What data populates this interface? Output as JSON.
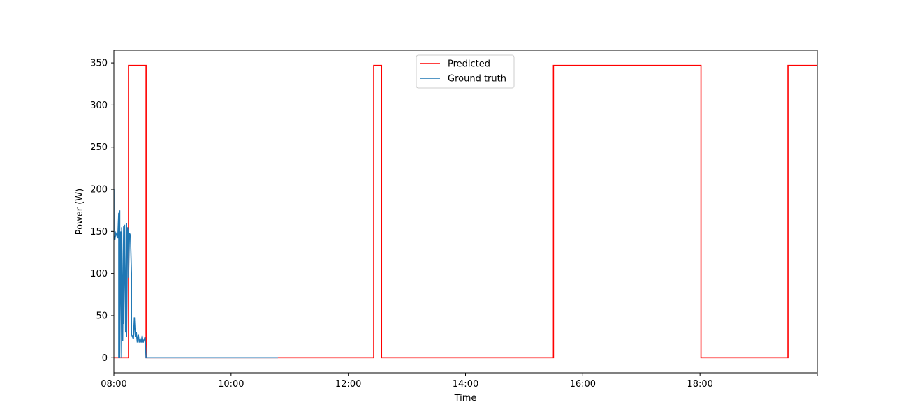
{
  "chart_data": {
    "type": "line",
    "title": "",
    "xlabel": "Time",
    "ylabel": "Power (W)",
    "xlim": [
      "08:00",
      "20:00"
    ],
    "ylim": [
      -18,
      365
    ],
    "x_ticks": [
      "08:00",
      "10:00",
      "12:00",
      "14:00",
      "16:00",
      "18:00"
    ],
    "y_ticks": [
      0,
      50,
      100,
      150,
      200,
      250,
      300,
      350
    ],
    "grid": false,
    "legend_position": "top-center",
    "series": [
      {
        "name": "Predicted",
        "color": "#ff0000",
        "step": true,
        "points": [
          [
            "08:00",
            0
          ],
          [
            "08:15",
            0
          ],
          [
            "08:15",
            347
          ],
          [
            "08:33",
            347
          ],
          [
            "08:33",
            0
          ],
          [
            "12:26",
            0
          ],
          [
            "12:26",
            347
          ],
          [
            "12:34",
            347
          ],
          [
            "12:34",
            0
          ],
          [
            "15:30",
            0
          ],
          [
            "15:30",
            347
          ],
          [
            "18:01",
            347
          ],
          [
            "18:01",
            0
          ],
          [
            "19:30",
            0
          ],
          [
            "19:30",
            347
          ],
          [
            "20:00",
            347
          ],
          [
            "20:00",
            0
          ]
        ]
      },
      {
        "name": "Ground truth",
        "color": "#1f77b4",
        "step": false,
        "points": [
          [
            "08:00",
            200
          ],
          [
            "08:00",
            145
          ],
          [
            "08:01",
            140
          ],
          [
            "08:02",
            148
          ],
          [
            "08:03",
            145
          ],
          [
            "08:04",
            142
          ],
          [
            "08:05",
            172
          ],
          [
            "08:05",
            0
          ],
          [
            "08:06",
            175
          ],
          [
            "08:06",
            0
          ],
          [
            "08:07",
            150
          ],
          [
            "08:08",
            0
          ],
          [
            "08:08",
            155
          ],
          [
            "08:09",
            20
          ],
          [
            "08:10",
            156
          ],
          [
            "08:10",
            40
          ],
          [
            "08:11",
            158
          ],
          [
            "08:12",
            30
          ],
          [
            "08:13",
            160
          ],
          [
            "08:13",
            25
          ],
          [
            "08:14",
            155
          ],
          [
            "08:15",
            145
          ],
          [
            "08:15",
            95
          ],
          [
            "08:16",
            148
          ],
          [
            "08:17",
            145
          ],
          [
            "08:18",
            100
          ],
          [
            "08:18",
            28
          ],
          [
            "08:19",
            25
          ],
          [
            "08:20",
            22
          ],
          [
            "08:21",
            48
          ],
          [
            "08:22",
            25
          ],
          [
            "08:23",
            30
          ],
          [
            "08:24",
            18
          ],
          [
            "08:25",
            28
          ],
          [
            "08:26",
            18
          ],
          [
            "08:27",
            22
          ],
          [
            "08:28",
            18
          ],
          [
            "08:29",
            26
          ],
          [
            "08:30",
            18
          ],
          [
            "08:32",
            25
          ],
          [
            "08:33",
            0
          ],
          [
            "10:48",
            0
          ]
        ]
      }
    ]
  }
}
